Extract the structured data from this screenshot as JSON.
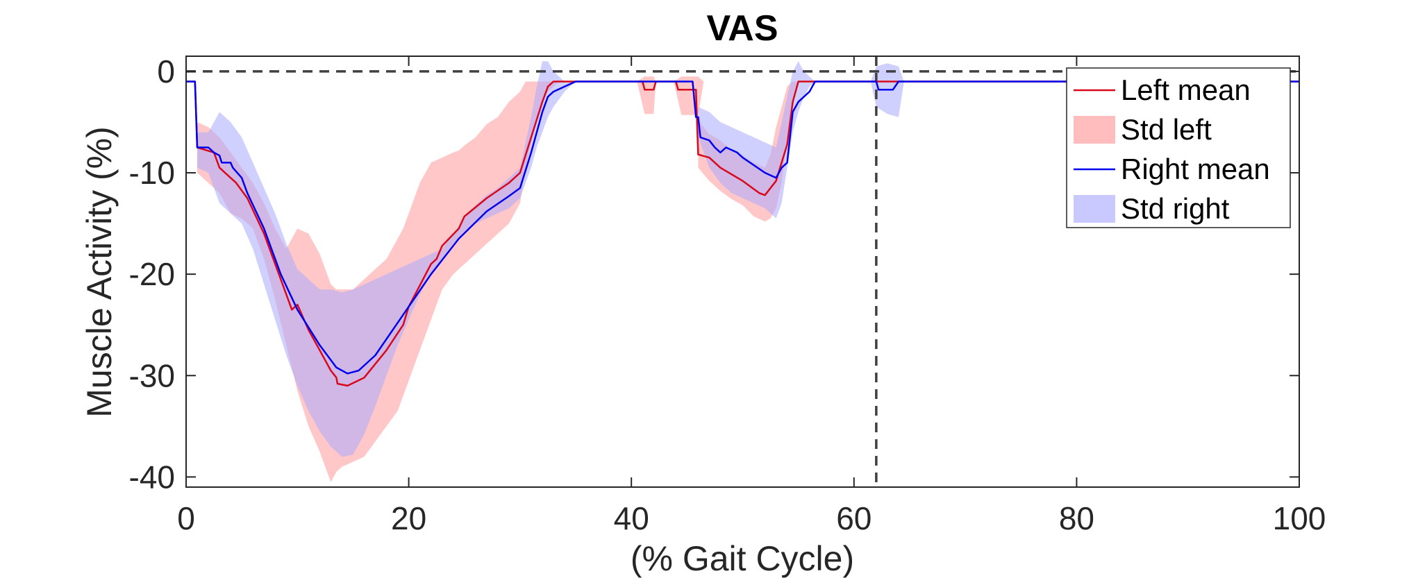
{
  "chart_data": {
    "type": "line",
    "title": "VAS",
    "xlabel": "(% Gait Cycle)",
    "ylabel": "Muscle Activity (%)",
    "xlim": [
      0,
      100
    ],
    "ylim": [
      -41,
      1.5
    ],
    "xticks": [
      0,
      20,
      40,
      60,
      80,
      100
    ],
    "yticks": [
      0,
      -10,
      -20,
      -30,
      -40
    ],
    "xtick_labels": [
      "0",
      "20",
      "40",
      "60",
      "80",
      "100"
    ],
    "ytick_labels": [
      "0",
      "-10",
      "-20",
      "-30",
      "-40"
    ],
    "grid": false,
    "legend_position": "top-right",
    "reference_lines": [
      {
        "orientation": "horizontal",
        "value": 0,
        "style": "dashed",
        "color": "#404040"
      },
      {
        "orientation": "vertical",
        "value": 62,
        "style": "dashed",
        "color": "#404040"
      }
    ],
    "series": [
      {
        "name": "Left mean",
        "kind": "line",
        "color": "#d9071b",
        "points": [
          [
            0,
            -1
          ],
          [
            0.8,
            -1
          ],
          [
            1,
            -7.5
          ],
          [
            2.5,
            -8
          ],
          [
            3,
            -9.5
          ],
          [
            4,
            -10.5
          ],
          [
            4.5,
            -11
          ],
          [
            5.5,
            -12.5
          ],
          [
            7,
            -16
          ],
          [
            8.5,
            -20.5
          ],
          [
            9.5,
            -23.5
          ],
          [
            10,
            -23
          ],
          [
            11,
            -25.5
          ],
          [
            12,
            -27.5
          ],
          [
            13,
            -29.5
          ],
          [
            13.5,
            -30.2
          ],
          [
            13.6,
            -30.8
          ],
          [
            14.5,
            -31
          ],
          [
            16,
            -30.2
          ],
          [
            18,
            -27.5
          ],
          [
            19.5,
            -25
          ],
          [
            20,
            -23.2
          ],
          [
            22,
            -19
          ],
          [
            22.5,
            -18.5
          ],
          [
            23,
            -17.2
          ],
          [
            24.5,
            -15.5
          ],
          [
            25,
            -14.3
          ],
          [
            27,
            -12.5
          ],
          [
            29,
            -11
          ],
          [
            30,
            -10
          ],
          [
            31,
            -6.5
          ],
          [
            32,
            -3
          ],
          [
            32.5,
            -1.5
          ],
          [
            33,
            -1
          ],
          [
            35,
            -1
          ],
          [
            41,
            -1
          ],
          [
            41.2,
            -1.8
          ],
          [
            42,
            -1.8
          ],
          [
            42.2,
            -1
          ],
          [
            44,
            -1
          ],
          [
            44.2,
            -1.8
          ],
          [
            45.8,
            -1.8
          ],
          [
            46,
            -8.2
          ],
          [
            47,
            -8.5
          ],
          [
            48,
            -9.5
          ],
          [
            50,
            -10.8
          ],
          [
            51.5,
            -12
          ],
          [
            52,
            -12.2
          ],
          [
            53,
            -10.8
          ],
          [
            53.5,
            -9
          ],
          [
            54,
            -7.2
          ],
          [
            54.5,
            -3
          ],
          [
            55,
            -1
          ],
          [
            100,
            -1
          ]
        ]
      },
      {
        "name": "Std left",
        "kind": "band",
        "color": "#ff9999",
        "opacity": 0.55,
        "segments": [
          {
            "x": [
              1,
              2,
              3,
              4,
              5,
              6,
              7,
              8,
              9,
              10,
              11,
              12,
              13,
              13.5,
              14,
              15,
              16,
              17,
              18,
              19,
              19.5,
              20,
              21,
              22,
              23,
              24,
              24.5,
              25,
              26,
              27,
              28,
              29,
              30,
              30.5,
              31,
              31.5,
              32,
              32.5,
              33,
              33.5
            ],
            "upper": [
              -5,
              -5.5,
              -6.5,
              -8,
              -9.5,
              -11,
              -13,
              -15.5,
              -17.5,
              -15.5,
              -16,
              -18,
              -21,
              -21.5,
              -21.5,
              -21.5,
              -20.5,
              -19.5,
              -18.5,
              -16.5,
              -15.5,
              -14,
              -11,
              -9,
              -8.5,
              -8,
              -7.8,
              -7.3,
              -6.5,
              -5.2,
              -4.5,
              -3,
              -2,
              -1,
              -1,
              -1,
              -1,
              -1,
              -1,
              -1
            ],
            "lower": [
              -10,
              -11,
              -12,
              -14,
              -14.5,
              -15.5,
              -18.5,
              -22.5,
              -27,
              -31.5,
              -35,
              -37.5,
              -40.5,
              -39.5,
              -39,
              -38.5,
              -38,
              -36.5,
              -35,
              -33.5,
              -32,
              -30.5,
              -27.5,
              -24.5,
              -21.5,
              -20,
              -19.5,
              -19,
              -18,
              -17,
              -16,
              -15,
              -13,
              -9.5,
              -7,
              -5,
              -3,
              -2,
              -1.5,
              -1
            ]
          },
          {
            "x": [
              40.5,
              41.2,
              42,
              42.2
            ],
            "upper": [
              -1,
              -0.5,
              -0.5,
              -1
            ],
            "lower": [
              -1,
              -4.2,
              -4.2,
              -1
            ]
          },
          {
            "x": [
              43.8,
              44.5,
              45,
              46,
              46.5
            ],
            "upper": [
              -1,
              -0.5,
              -0.5,
              -0.5,
              -1
            ],
            "lower": [
              -1,
              -4.3,
              -4.3,
              -4.3,
              -1
            ]
          },
          {
            "x": [
              46,
              47,
              48,
              49,
              50,
              51,
              52,
              52.5,
              53,
              53.5,
              54,
              54.5,
              55
            ],
            "upper": [
              -4.8,
              -6.2,
              -6.8,
              -7.8,
              -8.3,
              -9,
              -9.5,
              -8.2,
              -5.5,
              -3.5,
              -1.5,
              -1,
              -1
            ],
            "lower": [
              -9.5,
              -10.8,
              -11.8,
              -12.6,
              -13.2,
              -14.3,
              -14.8,
              -14.5,
              -13.5,
              -11,
              -6.5,
              -3.5,
              -1
            ]
          }
        ]
      },
      {
        "name": "Right mean",
        "kind": "line",
        "color": "#0000ee",
        "points": [
          [
            0,
            -1
          ],
          [
            0.8,
            -1
          ],
          [
            1,
            -7.5
          ],
          [
            2,
            -7.5
          ],
          [
            2.5,
            -8
          ],
          [
            3,
            -8.3
          ],
          [
            3.2,
            -9
          ],
          [
            4,
            -9
          ],
          [
            4.2,
            -9.5
          ],
          [
            5,
            -10.5
          ],
          [
            5.5,
            -12
          ],
          [
            7,
            -15.5
          ],
          [
            8.5,
            -20
          ],
          [
            10,
            -23.5
          ],
          [
            12,
            -27
          ],
          [
            13.5,
            -29.2
          ],
          [
            14.5,
            -29.8
          ],
          [
            15.5,
            -29.5
          ],
          [
            17,
            -28
          ],
          [
            19.5,
            -24
          ],
          [
            22,
            -20
          ],
          [
            24.5,
            -16.5
          ],
          [
            27,
            -13.8
          ],
          [
            29,
            -12.3
          ],
          [
            30,
            -11.5
          ],
          [
            31,
            -8
          ],
          [
            32,
            -4
          ],
          [
            32.5,
            -2.5
          ],
          [
            33,
            -2
          ],
          [
            34,
            -1.5
          ],
          [
            35,
            -1
          ],
          [
            45.5,
            -1
          ],
          [
            45.8,
            -4.5
          ],
          [
            46,
            -4.5
          ],
          [
            46.2,
            -6.5
          ],
          [
            47,
            -6.8
          ],
          [
            47.5,
            -7.5
          ],
          [
            48,
            -8
          ],
          [
            48.5,
            -7.5
          ],
          [
            49.5,
            -8
          ],
          [
            50,
            -8.5
          ],
          [
            52,
            -10
          ],
          [
            53,
            -10.5
          ],
          [
            53.5,
            -9.5
          ],
          [
            54,
            -9
          ],
          [
            54.5,
            -4
          ],
          [
            55,
            -3
          ],
          [
            56,
            -2
          ],
          [
            56.5,
            -1
          ],
          [
            62,
            -1
          ],
          [
            62.2,
            -1.8
          ],
          [
            63.5,
            -1.8
          ],
          [
            64,
            -1
          ],
          [
            100,
            -1
          ]
        ]
      },
      {
        "name": "Std right",
        "kind": "band",
        "color": "#aaaaff",
        "opacity": 0.55,
        "segments": [
          {
            "x": [
              1,
              2,
              2.5,
              3,
              4,
              5,
              6,
              7,
              8,
              9,
              10,
              11,
              12,
              13,
              14,
              15,
              16,
              17,
              18,
              19,
              20,
              21,
              22,
              23,
              24,
              25,
              26,
              27,
              28,
              29,
              30,
              31,
              31.5,
              32,
              32.5,
              33,
              34,
              35
            ],
            "upper": [
              -6,
              -6,
              -5,
              -4,
              -5,
              -6.5,
              -9,
              -11.5,
              -14,
              -17,
              -19.5,
              -20.5,
              -21.5,
              -21.5,
              -21.8,
              -21.5,
              -21,
              -20.5,
              -20,
              -19.5,
              -19,
              -18.5,
              -18,
              -17.5,
              -16,
              -14.5,
              -13.2,
              -12.2,
              -11.5,
              -10.5,
              -9.5,
              -4.5,
              -1.5,
              1,
              1,
              0,
              -1,
              -1
            ],
            "lower": [
              -9.5,
              -10,
              -11.5,
              -13,
              -14,
              -15,
              -17.5,
              -21,
              -24.5,
              -28,
              -31,
              -33.5,
              -35.5,
              -37,
              -38,
              -37.8,
              -35.8,
              -33,
              -30,
              -27,
              -24.5,
              -22,
              -20,
              -18.5,
              -17,
              -15.8,
              -15,
              -14.5,
              -14,
              -13.5,
              -12.5,
              -9.5,
              -7.5,
              -6,
              -4.5,
              -3.5,
              -2,
              -1
            ]
          },
          {
            "x": [
              46,
              47,
              48,
              49,
              50,
              51,
              52,
              53,
              53.5,
              54,
              54.5,
              55,
              55.5,
              56,
              56.5,
              57
            ],
            "upper": [
              -3.5,
              -4,
              -5,
              -5.5,
              -6,
              -6.5,
              -7,
              -7.5,
              -5,
              -2.5,
              0,
              1,
              0,
              -0.5,
              -1,
              -1
            ],
            "lower": [
              -6.5,
              -9.5,
              -11,
              -12,
              -12.5,
              -13,
              -13.5,
              -14.5,
              -13,
              -9.5,
              -6,
              -4,
              -2.5,
              -1.5,
              -1,
              -1
            ]
          },
          {
            "x": [
              61.5,
              62,
              63,
              64,
              64.5
            ],
            "upper": [
              -1,
              0.5,
              0.8,
              0.5,
              -1
            ],
            "lower": [
              -1,
              -3.5,
              -4.2,
              -4.5,
              -1
            ]
          }
        ]
      }
    ],
    "legend": [
      {
        "label": "Left mean",
        "symbol": "line",
        "color": "#d9071b"
      },
      {
        "label": "Std left",
        "symbol": "patch",
        "color": "#ffbdbd"
      },
      {
        "label": "Right mean",
        "symbol": "line",
        "color": "#0000ee"
      },
      {
        "label": "Std right",
        "symbol": "patch",
        "color": "#c9c9ff"
      }
    ]
  }
}
